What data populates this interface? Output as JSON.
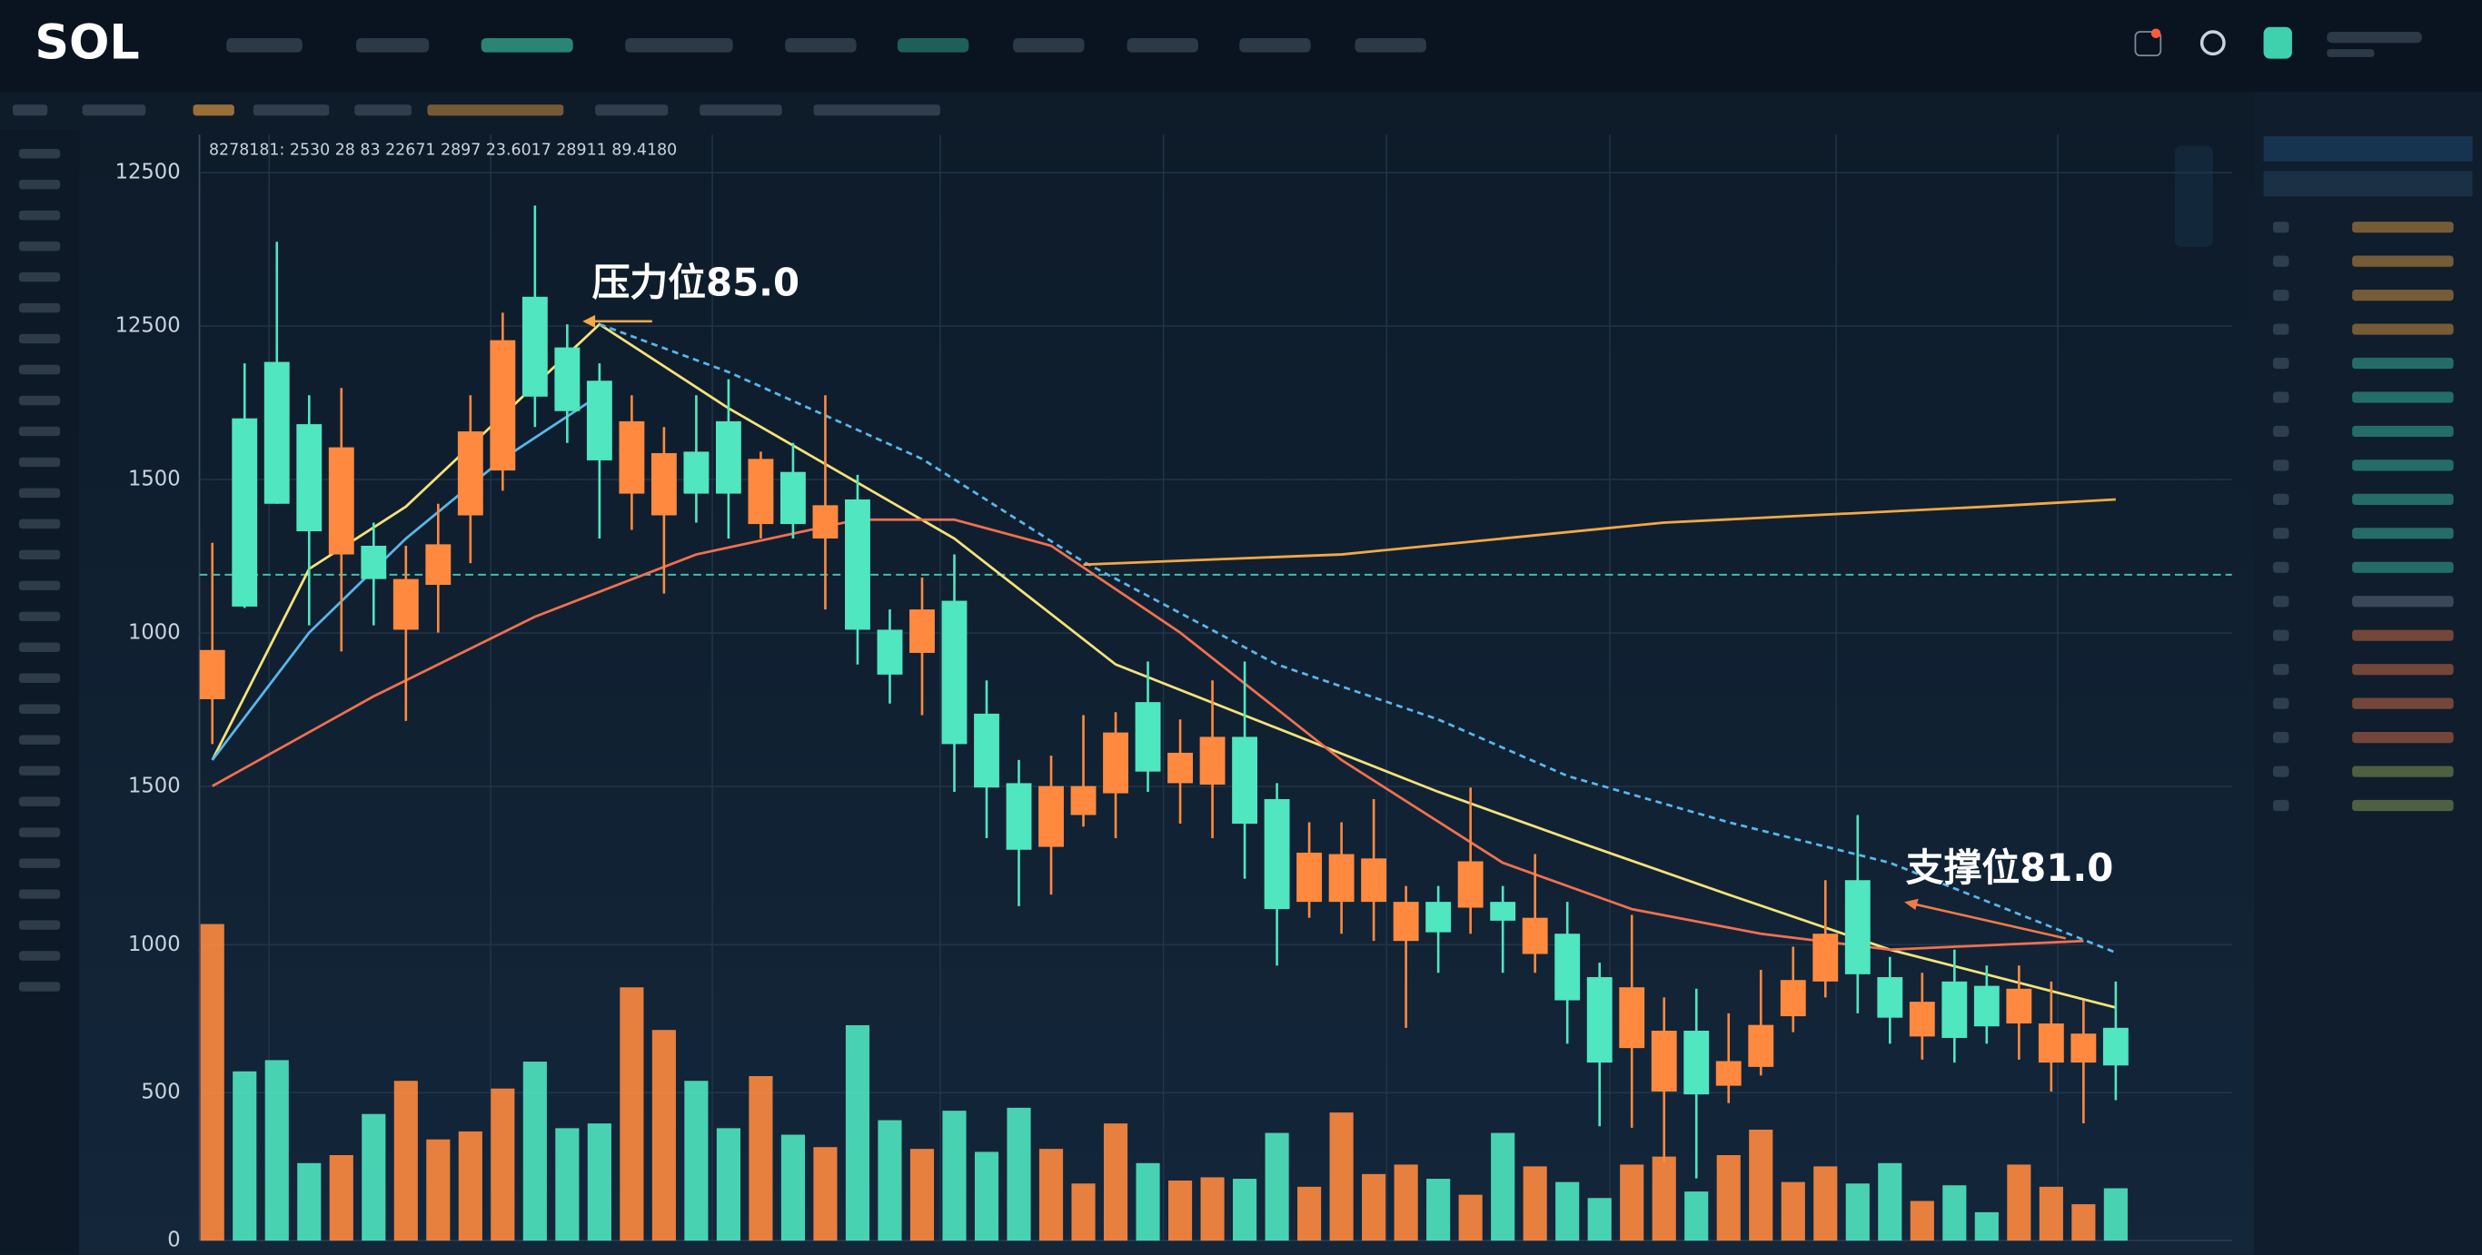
{
  "brand": "SOL",
  "chart_data": {
    "type": "candlestick",
    "legend_text": "8278181: 2530 28 83 22671 2897 23.6017 28911 89.4180",
    "y_axis_labels": [
      "12500",
      "12500",
      "1500",
      "1000",
      "1500"
    ],
    "annotations": [
      "压力位85.0",
      "支撑位81.0"
    ],
    "up_color": "#4fe6c0",
    "down_color": "#ff8a3f",
    "xlim": [
      -0.4,
      62.6
    ],
    "ylim": [
      78.66,
      86.3
    ],
    "y2lim": [
      0,
      3738
    ],
    "y2ticks": [
      0,
      500,
      1000
    ],
    "reference_line": 83.26,
    "open": [
      82.74,
      83.04,
      83.75,
      83.56,
      84.14,
      83.23,
      83.23,
      83.47,
      84.25,
      84.88,
      84.49,
      84.39,
      84.05,
      84.32,
      84.1,
      83.82,
      83.82,
      84.06,
      83.61,
      83.74,
      82.88,
      82.57,
      83.02,
      82.09,
      81.79,
      81.36,
      81.8,
      81.8,
      82.17,
      81.9,
      82.03,
      82.14,
      81.54,
      80.95,
      81.34,
      81.33,
      81.3,
      81.0,
      80.79,
      81.28,
      80.87,
      80.89,
      80.32,
      79.89,
      80.41,
      80.11,
      79.67,
      79.9,
      80.15,
      80.46,
      80.78,
      80.5,
      80.2,
      80.31,
      80.06,
      80.14,
      80.4,
      80.16,
      80.09,
      79.87
    ],
    "high": [
      83.48,
      84.72,
      85.56,
      84.5,
      84.55,
      83.62,
      83.46,
      83.75,
      84.5,
      85.07,
      85.81,
      84.99,
      84.72,
      84.5,
      84.28,
      84.5,
      84.61,
      84.11,
      84.17,
      84.5,
      83.95,
      83.02,
      83.24,
      83.4,
      82.53,
      81.98,
      82.01,
      82.29,
      82.31,
      82.66,
      82.26,
      82.53,
      82.66,
      81.82,
      81.55,
      81.55,
      81.71,
      81.11,
      81.11,
      81.79,
      81.11,
      81.33,
      81.0,
      80.58,
      80.91,
      80.34,
      80.4,
      80.23,
      80.53,
      80.69,
      81.15,
      81.6,
      80.62,
      80.51,
      80.67,
      80.56,
      80.56,
      80.45,
      80.32,
      80.45
    ],
    "low": [
      82.09,
      83.03,
      83.75,
      82.91,
      82.73,
      82.91,
      82.25,
      82.86,
      83.34,
      83.84,
      84.28,
      84.17,
      83.51,
      83.57,
      83.13,
      83.62,
      83.51,
      83.51,
      83.51,
      83.02,
      82.64,
      82.37,
      82.29,
      81.76,
      81.44,
      80.97,
      81.05,
      81.52,
      81.44,
      81.76,
      81.54,
      81.44,
      81.16,
      80.56,
      80.89,
      80.78,
      80.73,
      80.13,
      80.51,
      80.78,
      80.51,
      80.51,
      80.02,
      79.45,
      79.44,
      79.2,
      79.09,
      79.61,
      79.8,
      80.1,
      80.34,
      80.23,
      80.02,
      79.91,
      79.89,
      80.02,
      79.91,
      79.69,
      79.47,
      79.63
    ],
    "close": [
      82.4,
      84.34,
      84.73,
      84.3,
      83.4,
      83.46,
      82.88,
      83.19,
      83.67,
      83.98,
      85.18,
      84.83,
      84.6,
      83.82,
      83.67,
      84.11,
      84.32,
      83.61,
      83.97,
      83.51,
      83.78,
      82.88,
      82.72,
      83.08,
      82.3,
      81.82,
      81.38,
      81.6,
      81.75,
      82.38,
      81.82,
      81.81,
      82.14,
      81.71,
      81.0,
      81.0,
      81.0,
      80.73,
      81.0,
      80.96,
      81.0,
      80.64,
      80.78,
      80.48,
      79.99,
      79.69,
      80.11,
      79.73,
      79.86,
      80.21,
      80.45,
      81.15,
      80.48,
      80.07,
      80.45,
      80.42,
      80.16,
      79.89,
      79.89,
      80.13
    ],
    "volume": [
      1070,
      572,
      610,
      262,
      289,
      428,
      540,
      342,
      369,
      514,
      605,
      380,
      396,
      856,
      712,
      540,
      380,
      556,
      358,
      316,
      728,
      407,
      310,
      439,
      300,
      449,
      310,
      193,
      396,
      262,
      203,
      214,
      209,
      364,
      182,
      433,
      225,
      257,
      209,
      155,
      364,
      251,
      198,
      144,
      257,
      284,
      166,
      289,
      375,
      198,
      251,
      193,
      262,
      134,
      187,
      96,
      257,
      182,
      123,
      177
    ],
    "lines": [
      {
        "color": "#f3e27a",
        "dashed": false,
        "x": [
          0,
          3,
          6,
          12,
          16,
          23,
          28,
          33,
          38,
          42,
          47,
          52,
          59
        ],
        "values": [
          81.98,
          83.3,
          83.73,
          84.99,
          84.41,
          83.51,
          82.64,
          82.2,
          81.76,
          81.44,
          81.05,
          80.67,
          80.27
        ]
      },
      {
        "color": "#5ab6e8",
        "dashed": false,
        "x": [
          0,
          3,
          6,
          9,
          12
        ],
        "values": [
          81.98,
          82.86,
          83.51,
          84.06,
          84.5
        ]
      },
      {
        "color": "#5ab6e8",
        "dashed": true,
        "x": [
          12,
          16,
          22,
          27,
          33,
          38,
          42,
          47,
          52,
          59
        ],
        "values": [
          84.99,
          84.66,
          84.06,
          83.35,
          82.64,
          82.26,
          81.87,
          81.55,
          81.27,
          80.65
        ]
      },
      {
        "color": "#f0704f",
        "dashed": false,
        "x": [
          0,
          5,
          10,
          15,
          20,
          23,
          26,
          30,
          35,
          40,
          44,
          48,
          52,
          58
        ],
        "values": [
          81.8,
          82.42,
          82.97,
          83.4,
          83.64,
          83.64,
          83.46,
          82.86,
          81.98,
          81.27,
          80.95,
          80.78,
          80.67,
          80.73
        ]
      },
      {
        "color": "#f5a845",
        "dashed": false,
        "x": [
          27,
          35,
          45,
          55,
          59
        ],
        "values": [
          83.33,
          83.4,
          83.62,
          83.73,
          83.78
        ]
      }
    ]
  }
}
